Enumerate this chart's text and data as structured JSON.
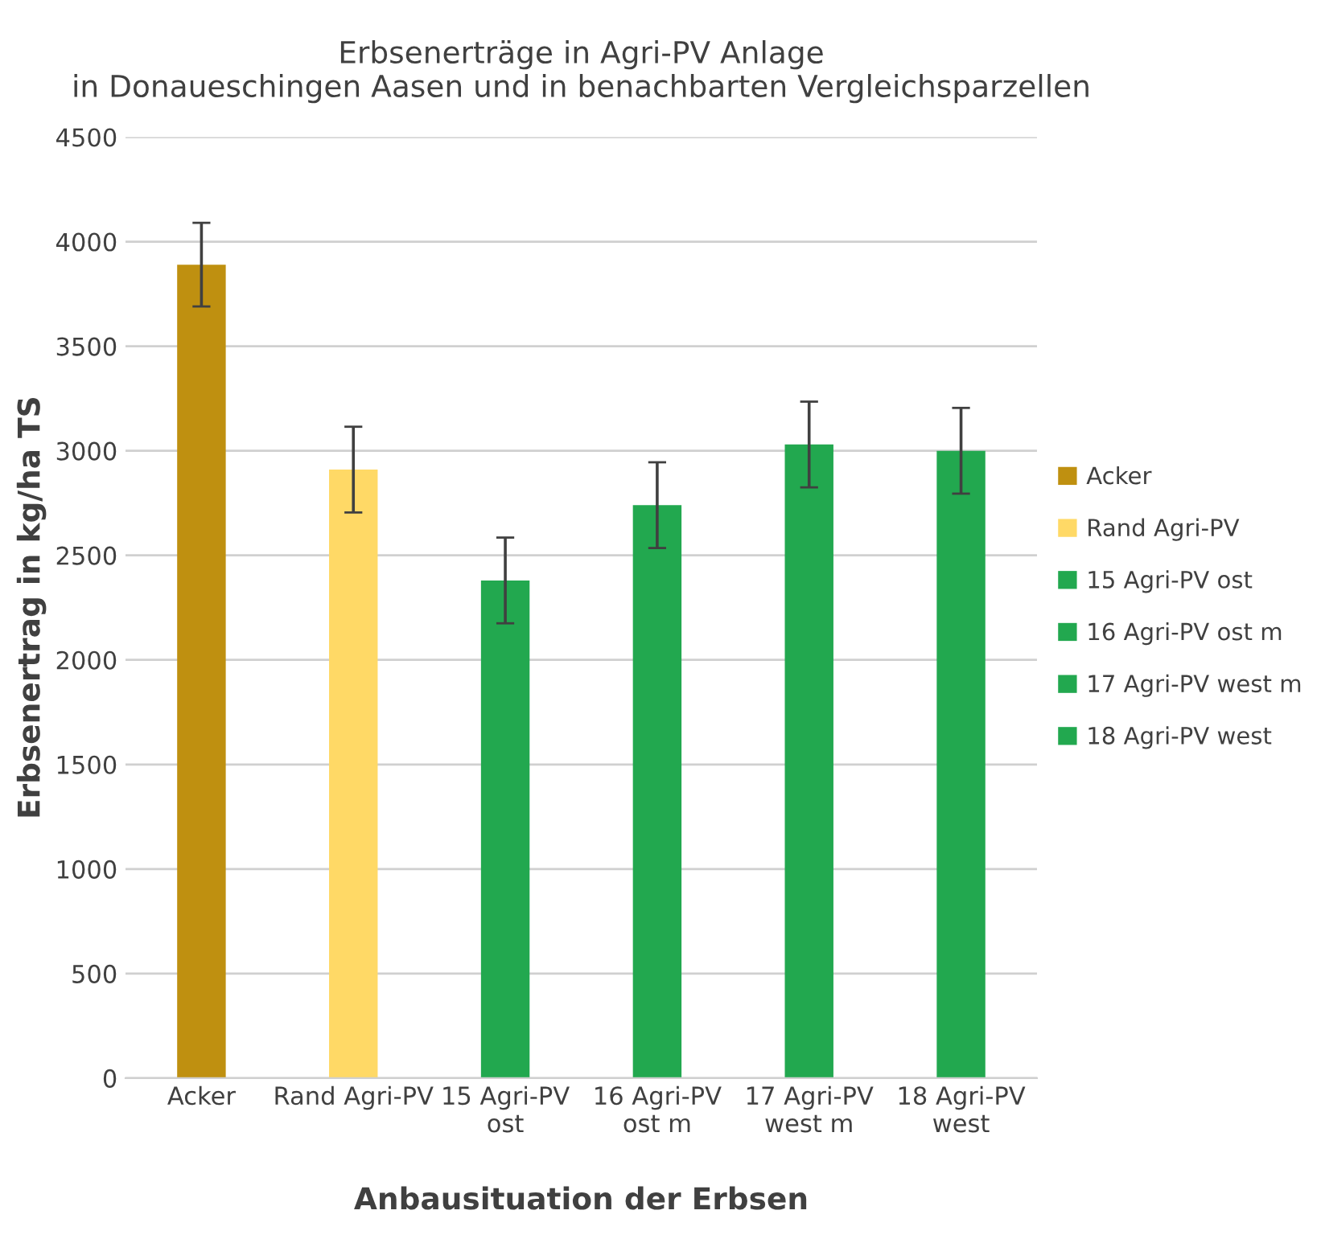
{
  "chart_data": {
    "type": "bar",
    "title": "Erbsenerträge in Agri-PV Anlage\nin Donaueschingen Aasen und in benachbarten Vergleichsparzellen",
    "xlabel": "Anbausituation der Erbsen",
    "ylabel": "Erbsenertrag in kg/ha TS",
    "categories": [
      "Acker",
      "Rand Agri-PV",
      "15 Agri-PV\nost",
      "16 Agri-PV\nost m",
      "17 Agri-PV\nwest m",
      "18 Agri-PV\nwest"
    ],
    "series": [
      {
        "name": "Acker",
        "color": "#bf9010",
        "values": [
          3890,
          null,
          null,
          null,
          null,
          null
        ],
        "errors": [
          200,
          null,
          null,
          null,
          null,
          null
        ]
      },
      {
        "name": "Rand Agri-PV",
        "color": "#ffd966",
        "values": [
          null,
          2910,
          null,
          null,
          null,
          null
        ],
        "errors": [
          null,
          205,
          null,
          null,
          null,
          null
        ]
      },
      {
        "name": "15 Agri-PV ost",
        "color": "#22a84f",
        "values": [
          null,
          null,
          2380,
          null,
          null,
          null
        ],
        "errors": [
          null,
          null,
          205,
          null,
          null,
          null
        ]
      },
      {
        "name": "16 Agri-PV ost m",
        "color": "#22a84f",
        "values": [
          null,
          null,
          null,
          2740,
          null,
          null
        ],
        "errors": [
          null,
          null,
          null,
          205,
          null,
          null
        ]
      },
      {
        "name": "17 Agri-PV west m",
        "color": "#22a84f",
        "values": [
          null,
          null,
          null,
          null,
          3030,
          null
        ],
        "errors": [
          null,
          null,
          null,
          null,
          205,
          null
        ]
      },
      {
        "name": "18 Agri-PV west",
        "color": "#22a84f",
        "values": [
          null,
          null,
          null,
          null,
          null,
          3000
        ],
        "errors": [
          null,
          null,
          null,
          null,
          null,
          205
        ]
      }
    ],
    "ylim": [
      0,
      4500
    ],
    "yticks": [
      0,
      500,
      1000,
      1500,
      2000,
      2500,
      3000,
      3500,
      4000,
      4500
    ],
    "grid": "y",
    "legend": "right"
  }
}
